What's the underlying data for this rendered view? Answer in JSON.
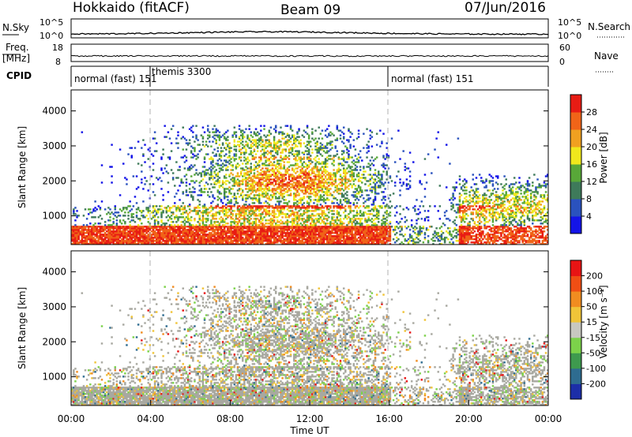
{
  "header": {
    "station": "Hokkaido (fitACF)",
    "beam": "Beam 09",
    "date": "07/Jun/2016"
  },
  "strips": {
    "nsky_label": "N.Sky",
    "nsky_ticks": [
      "10^5",
      "10^0"
    ],
    "nsearch_label": "N.Search",
    "nsearch_ticks": [
      "10^5",
      "10^0"
    ],
    "freq_label": "Freq.",
    "freq_unit": "[MHz]",
    "freq_ticks": [
      "18",
      "8"
    ],
    "nave_label": "Nave",
    "nave_ticks": [
      "60",
      "0"
    ],
    "cpid_label": "CPID",
    "cpid_segments": [
      {
        "label": "normal (fast) 151",
        "start": 0,
        "end": 4
      },
      {
        "label": "themis 3300",
        "start": 4,
        "end": 16
      },
      {
        "label": "normal (fast) 151",
        "start": 16,
        "end": 24
      }
    ]
  },
  "chart_data": [
    {
      "type": "heatmap",
      "name": "power",
      "ylabel": "Slant Range [km]",
      "ylim": [
        180,
        4600
      ],
      "yticks": [
        "1000",
        "2000",
        "3000",
        "4000"
      ],
      "xlim": [
        0,
        24
      ],
      "xticks": [
        "00:00",
        "04:00",
        "08:00",
        "12:00",
        "16:00",
        "20:00",
        "00:00"
      ],
      "colorbar": {
        "label": "Power [dB]",
        "ticks": [
          "4",
          "8",
          "12",
          "16",
          "20",
          "24",
          "28"
        ],
        "colors": [
          "#1414e8",
          "#2a52be",
          "#3e7a5a",
          "#58a838",
          "#f0e81c",
          "#f0a020",
          "#f06418",
          "#e81c14"
        ]
      }
    },
    {
      "type": "heatmap",
      "name": "velocity",
      "ylabel": "Slant Range [km]",
      "ylim": [
        180,
        4600
      ],
      "yticks": [
        "1000",
        "2000",
        "3000",
        "4000"
      ],
      "xlim": [
        0,
        24
      ],
      "xticks": [
        "00:00",
        "04:00",
        "08:00",
        "12:00",
        "16:00",
        "20:00",
        "00:00"
      ],
      "xlabel": "Time UT",
      "colorbar": {
        "label": "Velocity [m s⁻¹]",
        "ticks": [
          "200",
          "100",
          "50",
          "15",
          "-15",
          "-50",
          "-100",
          "-200"
        ],
        "colors": [
          "#1c2ea8",
          "#2e6c90",
          "#3e9a4e",
          "#7cd24a",
          "#c8c8c0",
          "#f0c438",
          "#f08c20",
          "#f04e14",
          "#e81414"
        ]
      }
    }
  ],
  "colors": {
    "grid_dash": "#b0b0b0",
    "ground_scatter": "#a8a8a0"
  }
}
